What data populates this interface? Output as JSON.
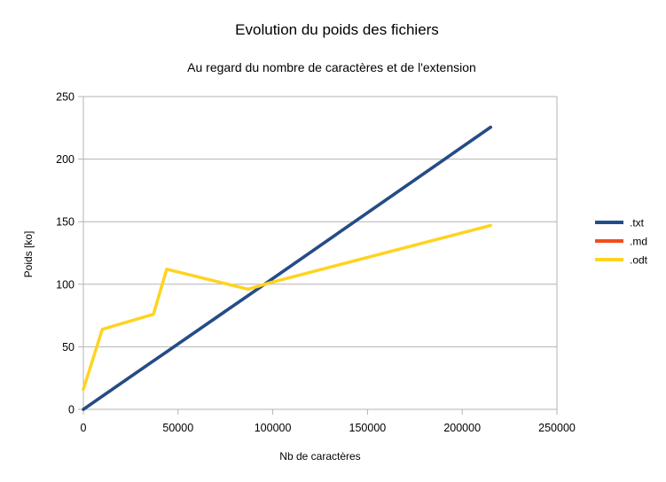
{
  "chart_data": {
    "type": "line",
    "title": "Evolution du poids des fichiers",
    "subtitle": "Au regard du nombre de caractères et de l'extension",
    "xlabel": "Nb de caractères",
    "ylabel": "Poids [ko]",
    "xlim": [
      0,
      250000
    ],
    "ylim": [
      0,
      250
    ],
    "xticks": [
      0,
      50000,
      100000,
      150000,
      200000,
      250000
    ],
    "xtick_labels": [
      "0",
      "50000",
      "100000",
      "150000",
      "200000",
      "250000"
    ],
    "yticks": [
      0,
      50,
      100,
      150,
      200,
      250
    ],
    "ytick_labels": [
      "0",
      "50",
      "100",
      "150",
      "200",
      "250"
    ],
    "grid": "horizontal",
    "legend_position": "right",
    "series": [
      {
        "name": ".txt",
        "color": "#1f4e8c",
        "points": [
          [
            0,
            0
          ],
          [
            10000,
            10.5
          ],
          [
            37000,
            38.7
          ],
          [
            44000,
            46
          ],
          [
            87000,
            91
          ],
          [
            98000,
            102.5
          ],
          [
            215000,
            225.5
          ]
        ]
      },
      {
        "name": ".md",
        "color": "#f04e1b",
        "points": [
          [
            0,
            0
          ],
          [
            10000,
            10.5
          ],
          [
            37000,
            38.7
          ],
          [
            44000,
            46
          ],
          [
            87000,
            91
          ],
          [
            98000,
            102.5
          ],
          [
            215000,
            225.5
          ]
        ]
      },
      {
        "name": ".odt",
        "color": "#ffd320",
        "points": [
          [
            0,
            16
          ],
          [
            10000,
            64
          ],
          [
            37000,
            76
          ],
          [
            44000,
            112
          ],
          [
            87000,
            96
          ],
          [
            98000,
            101
          ],
          [
            215000,
            147
          ]
        ]
      }
    ]
  }
}
